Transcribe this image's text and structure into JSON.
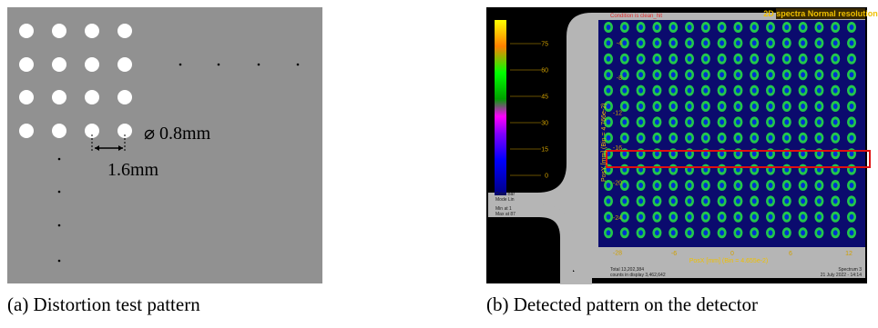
{
  "panel_a": {
    "diameter_label": "⌀ 0.8mm",
    "pitch_label": "1.6mm",
    "caption": "(a) Distortion test pattern"
  },
  "panel_b": {
    "condition": "Condition is clean_hit",
    "title": "2D spectra Normal resolution",
    "colorbar_ticks": [
      "75",
      "60",
      "45",
      "30",
      "15",
      "0"
    ],
    "y_ticks": [
      "-4",
      "-8",
      "-12",
      "-16",
      "-20",
      "-24",
      "-28"
    ],
    "x_ticks": [
      "-6",
      "0",
      "6",
      "12"
    ],
    "y_label": "PosY [mm] (Bin = 4.766e-2)",
    "x_label": "PosX [mm] (Bin = 4.655e-2)",
    "colorbar_mode": [
      "Color Bar",
      "Mode Lin"
    ],
    "min_max": [
      "Min at 1",
      "Max at 87"
    ],
    "totals": [
      "Total 13,202,384",
      "counts in display 3,462,642"
    ],
    "spectrum": [
      "Spectrum 3",
      "21 July 2022 - 14:14"
    ],
    "caption": "(b) Detected pattern on the detector"
  }
}
